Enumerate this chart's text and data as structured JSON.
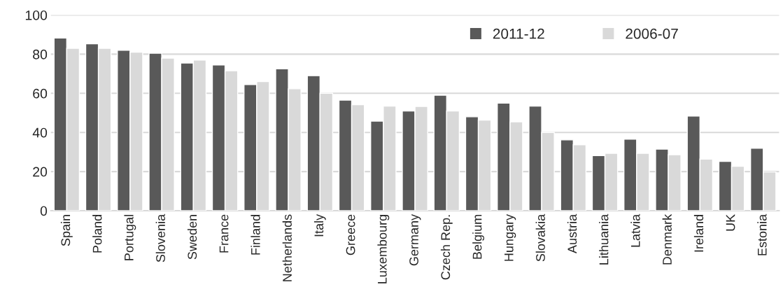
{
  "chart_data": {
    "type": "bar",
    "categories": [
      "Spain",
      "Poland",
      "Portugal",
      "Slovenia",
      "Sweden",
      "France",
      "Finland",
      "Netherlands",
      "Italy",
      "Greece",
      "Luxembourg",
      "Germany",
      "Czech Rep.",
      "Belgium",
      "Hungary",
      "Slovakia",
      "Austria",
      "Lithuania",
      "Latvia",
      "Denmark",
      "Ireland",
      "UK",
      "Estonia"
    ],
    "series": [
      {
        "name": "2011-12",
        "color": "#595959",
        "values": [
          88.3,
          85.3,
          82,
          80.5,
          75.5,
          74.5,
          64.5,
          72.5,
          69,
          56.5,
          45.8,
          51,
          59,
          48,
          55,
          53.5,
          36.2,
          28.2,
          36.6,
          31.5,
          48.4,
          25.2,
          31.9
        ]
      },
      {
        "name": "2006-07",
        "color": "#d9d9d9",
        "values": [
          83,
          83,
          81,
          78,
          77,
          71.5,
          66,
          62.3,
          60,
          54.2,
          53.5,
          53.3,
          51,
          46.3,
          45.4,
          40,
          33.7,
          29.3,
          29.3,
          28.6,
          26.4,
          22.7,
          19.8
        ]
      }
    ],
    "ylim": [
      0,
      100
    ],
    "yticks": [
      0,
      20,
      40,
      60,
      80,
      100
    ],
    "grid": "y",
    "legend": "top right"
  }
}
